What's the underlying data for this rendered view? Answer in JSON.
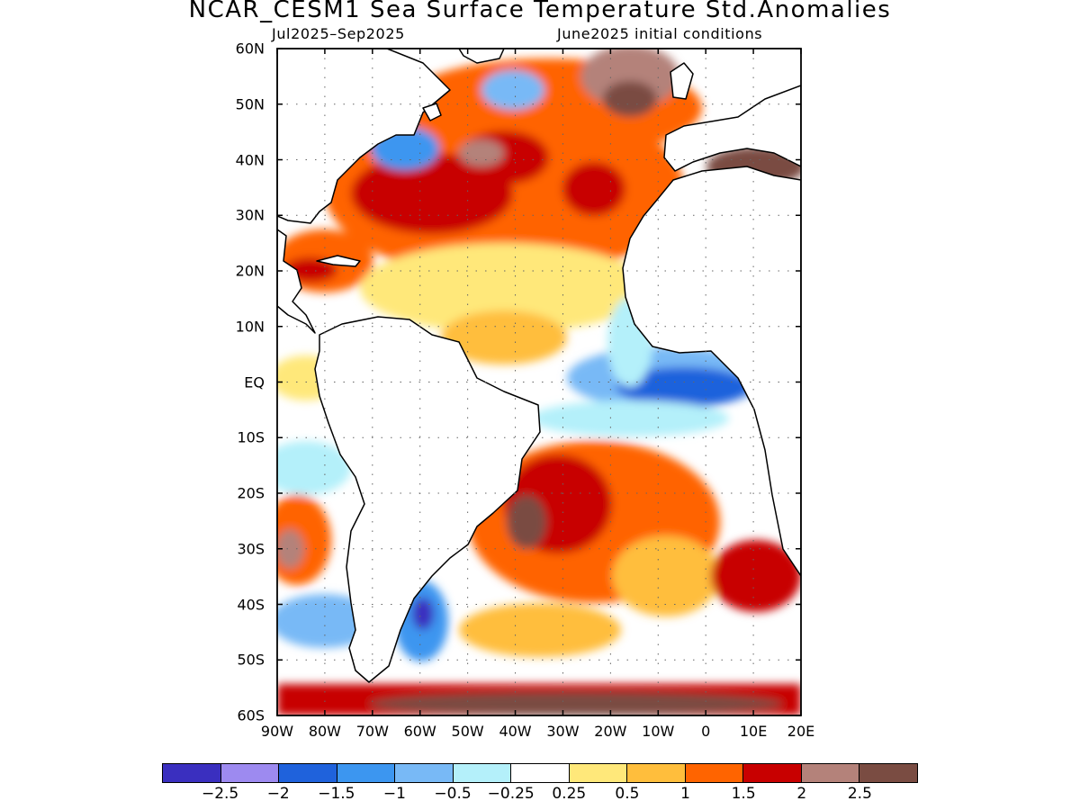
{
  "title": "NCAR_CESM1 Sea Surface Temperature Std.Anomalies",
  "valid_period": "Jul2025–Sep2025",
  "initial_conditions": "June2025 initial conditions",
  "map": {
    "projection": "lat-lon",
    "lon_range": [
      -90,
      20
    ],
    "lat_range": [
      -60,
      60
    ],
    "grid": true,
    "lat_labels": [
      "60N",
      "50N",
      "40N",
      "30N",
      "20N",
      "10N",
      "EQ",
      "10S",
      "20S",
      "30S",
      "40S",
      "50S",
      "60S"
    ],
    "lat_values": [
      60,
      50,
      40,
      30,
      20,
      10,
      0,
      -10,
      -20,
      -30,
      -40,
      -50,
      -60
    ],
    "lon_labels": [
      "90W",
      "80W",
      "70W",
      "60W",
      "50W",
      "40W",
      "30W",
      "20W",
      "10W",
      "0",
      "10E",
      "20E"
    ],
    "lon_values": [
      -90,
      -80,
      -70,
      -60,
      -50,
      -40,
      -30,
      -20,
      -10,
      0,
      10,
      20
    ],
    "land_color": "#ffffff",
    "coast_color": "#000000"
  },
  "colorbar": {
    "colors": [
      "#3a2fbf",
      "#9d8af0",
      "#1f62dc",
      "#3c96f0",
      "#78b9f6",
      "#b4f0fa",
      "#ffffff",
      "#ffe87a",
      "#ffbe3c",
      "#ff6400",
      "#c80000",
      "#b4827a",
      "#7a4c42"
    ],
    "labels": [
      "−2.5",
      "−2",
      "−1.5",
      "−1",
      "−0.5",
      "−0.25",
      "0.25",
      "0.5",
      "1",
      "1.5",
      "2",
      "2.5"
    ]
  }
}
